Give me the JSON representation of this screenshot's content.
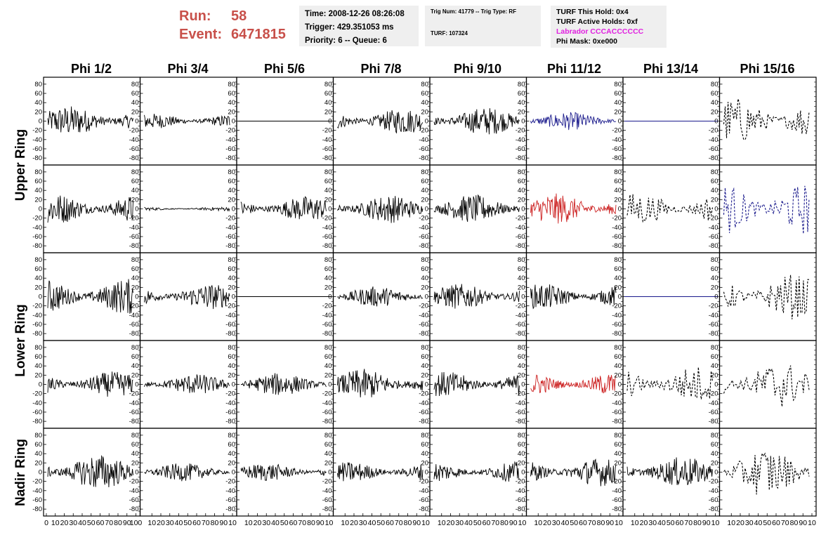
{
  "header": {
    "run_label": "Run:",
    "run_value": "58",
    "event_label": "Event:",
    "event_value": "6471815"
  },
  "info_panel": {
    "time": "Time: 2008-12-26 08:26:08",
    "trigger": "Trigger: 429.351053 ms",
    "priority": "Priority: 6 -- Queue: 6"
  },
  "trig_panel": {
    "trig_line": "Trig Num: 41779 -- Trig Type: RF",
    "turf_line": "TURF: 107324"
  },
  "turf_panel": {
    "this_hold": "TURF This Hold: 0x4",
    "active_holds": "TURF Active Holds: 0xf",
    "labrador": "Labrador CCCACCCCCC",
    "phi_mask": "Phi Mask: 0xe000"
  },
  "columns": [
    "Phi 1/2",
    "Phi 3/4",
    "Phi 5/6",
    "Phi 7/8",
    "Phi 9/10",
    "Phi 11/12",
    "Phi 13/14",
    "Phi 15/16"
  ],
  "row_labels": [
    "Upper Ring",
    "Lower Ring",
    "Nadir Ring"
  ],
  "y_ticks": [
    "80",
    "60",
    "40",
    "20",
    "0",
    "-20",
    "-40",
    "-60",
    "-80"
  ],
  "x_ticks": [
    "0",
    "10",
    "20",
    "30",
    "40",
    "50",
    "60",
    "70",
    "80",
    "90",
    "100"
  ],
  "x_ticks_first": "0",
  "colors": {
    "red_text": "#c8504a",
    "magenta": "#e020e0",
    "black": "#000000",
    "blue": "#1a1a8c",
    "red": "#cc2020",
    "panel_bg": "#efefef"
  },
  "waveforms": [
    [
      {
        "style": "black",
        "amp": 24
      },
      {
        "style": "black",
        "amp": 12
      },
      {
        "style": "flat-black",
        "amp": 0
      },
      {
        "style": "black",
        "amp": 20
      },
      {
        "style": "black",
        "amp": 22
      },
      {
        "style": "blue",
        "amp": 14
      },
      {
        "style": "flat-blue",
        "amp": 0
      },
      {
        "style": "dashed-black",
        "amp": 40
      }
    ],
    [
      {
        "style": "black",
        "amp": 24
      },
      {
        "style": "black",
        "amp": 3
      },
      {
        "style": "black",
        "amp": 20
      },
      {
        "style": "black",
        "amp": 22
      },
      {
        "style": "black",
        "amp": 22
      },
      {
        "style": "red",
        "amp": 24
      },
      {
        "style": "dashed-black",
        "amp": 28
      },
      {
        "style": "dashed-blue",
        "amp": 44
      }
    ],
    [
      {
        "style": "black",
        "amp": 28
      },
      {
        "style": "black",
        "amp": 20
      },
      {
        "style": "flat-black",
        "amp": 0
      },
      {
        "style": "black",
        "amp": 16
      },
      {
        "style": "black",
        "amp": 20
      },
      {
        "style": "black",
        "amp": 20
      },
      {
        "style": "flat-blue",
        "amp": 0
      },
      {
        "style": "dashed-black",
        "amp": 38
      }
    ],
    [
      {
        "style": "black",
        "amp": 20
      },
      {
        "style": "black",
        "amp": 16
      },
      {
        "style": "black",
        "amp": 18
      },
      {
        "style": "black",
        "amp": 24
      },
      {
        "style": "black",
        "amp": 20
      },
      {
        "style": "red",
        "amp": 18
      },
      {
        "style": "dashed-black",
        "amp": 32
      },
      {
        "style": "dashed-black",
        "amp": 40
      }
    ],
    [
      {
        "style": "black",
        "amp": 28
      },
      {
        "style": "black",
        "amp": 14
      },
      {
        "style": "black",
        "amp": 14
      },
      {
        "style": "black",
        "amp": 16
      },
      {
        "style": "black",
        "amp": 16
      },
      {
        "style": "black",
        "amp": 22
      },
      {
        "style": "black",
        "amp": 24
      },
      {
        "style": "dashed-black",
        "amp": 42
      }
    ]
  ]
}
